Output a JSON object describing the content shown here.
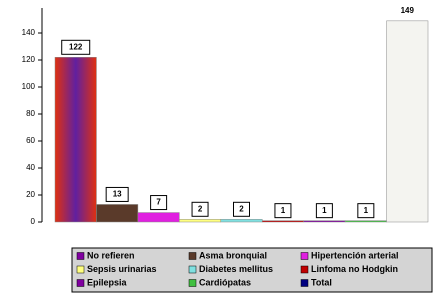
{
  "chart_data": {
    "type": "bar",
    "categories": [
      "No refieren",
      "Asma bronquial",
      "Hipertención arterial",
      "Sepsis urinarias",
      "Diabetes mellitus",
      "Linfoma no Hodgkin",
      "Epilepsia",
      "Cardiópatas",
      "Total"
    ],
    "values": [
      122,
      13,
      7,
      2,
      2,
      1,
      1,
      1,
      149
    ],
    "bar_colors": [
      "#b0206a",
      "#5a3a2a",
      "#e020e0",
      "#ffff80",
      "#80e0e0",
      "#c00000",
      "#8000a0",
      "#40c040",
      "#f4f4f0"
    ],
    "legend_colors": [
      "#8000a0",
      "#5a3a2a",
      "#e020e0",
      "#ffff80",
      "#80e0e0",
      "#c00000",
      "#8000a0",
      "#40c040",
      "#000080"
    ],
    "ylim": [
      0,
      150
    ],
    "yticks": [
      0,
      20,
      40,
      60,
      80,
      100,
      120,
      140
    ]
  }
}
